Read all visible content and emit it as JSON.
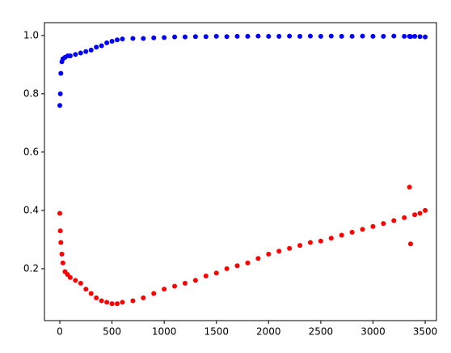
{
  "chart_data": {
    "type": "scatter",
    "x": [
      0,
      5,
      10,
      20,
      30,
      50,
      75,
      100,
      150,
      200,
      250,
      300,
      350,
      400,
      450,
      500,
      550,
      600,
      700,
      800,
      900,
      1000,
      1100,
      1200,
      1300,
      1400,
      1500,
      1600,
      1700,
      1800,
      1900,
      2000,
      2100,
      2200,
      2300,
      2400,
      2500,
      2600,
      2700,
      2800,
      2900,
      3000,
      3100,
      3200,
      3300,
      3350,
      3360,
      3400,
      3450,
      3500
    ],
    "series": [
      {
        "color": "#0000ff",
        "values": [
          0.76,
          0.8,
          0.87,
          0.91,
          0.92,
          0.925,
          0.93,
          0.93,
          0.935,
          0.94,
          0.945,
          0.95,
          0.96,
          0.965,
          0.975,
          0.98,
          0.985,
          0.988,
          0.99,
          0.99,
          0.992,
          0.993,
          0.995,
          0.995,
          0.996,
          0.996,
          0.997,
          0.996,
          0.997,
          0.997,
          0.998,
          0.997,
          0.997,
          0.998,
          0.997,
          0.998,
          0.997,
          0.998,
          0.997,
          0.997,
          0.998,
          0.997,
          0.997,
          0.998,
          0.997,
          0.997,
          0.996,
          0.997,
          0.996,
          0.995
        ]
      },
      {
        "color": "#ff0000",
        "values": [
          0.39,
          0.33,
          0.29,
          0.25,
          0.22,
          0.19,
          0.18,
          0.17,
          0.16,
          0.15,
          0.13,
          0.115,
          0.1,
          0.09,
          0.085,
          0.08,
          0.08,
          0.085,
          0.09,
          0.1,
          0.115,
          0.13,
          0.14,
          0.15,
          0.16,
          0.175,
          0.185,
          0.2,
          0.21,
          0.22,
          0.235,
          0.25,
          0.26,
          0.27,
          0.28,
          0.29,
          0.295,
          0.305,
          0.315,
          0.325,
          0.335,
          0.345,
          0.355,
          0.365,
          0.375,
          0.48,
          0.285,
          0.385,
          0.39,
          0.4
        ]
      }
    ],
    "xlim": [
      -147,
      3608
    ],
    "ylim": [
      0.022,
      1.044
    ],
    "xticks": [
      0,
      500,
      1000,
      1500,
      2000,
      2500,
      3000,
      3500
    ],
    "yticks": [
      0.2,
      0.4,
      0.6,
      0.8,
      {
        "value": 1,
        "label": "1.0"
      }
    ]
  }
}
